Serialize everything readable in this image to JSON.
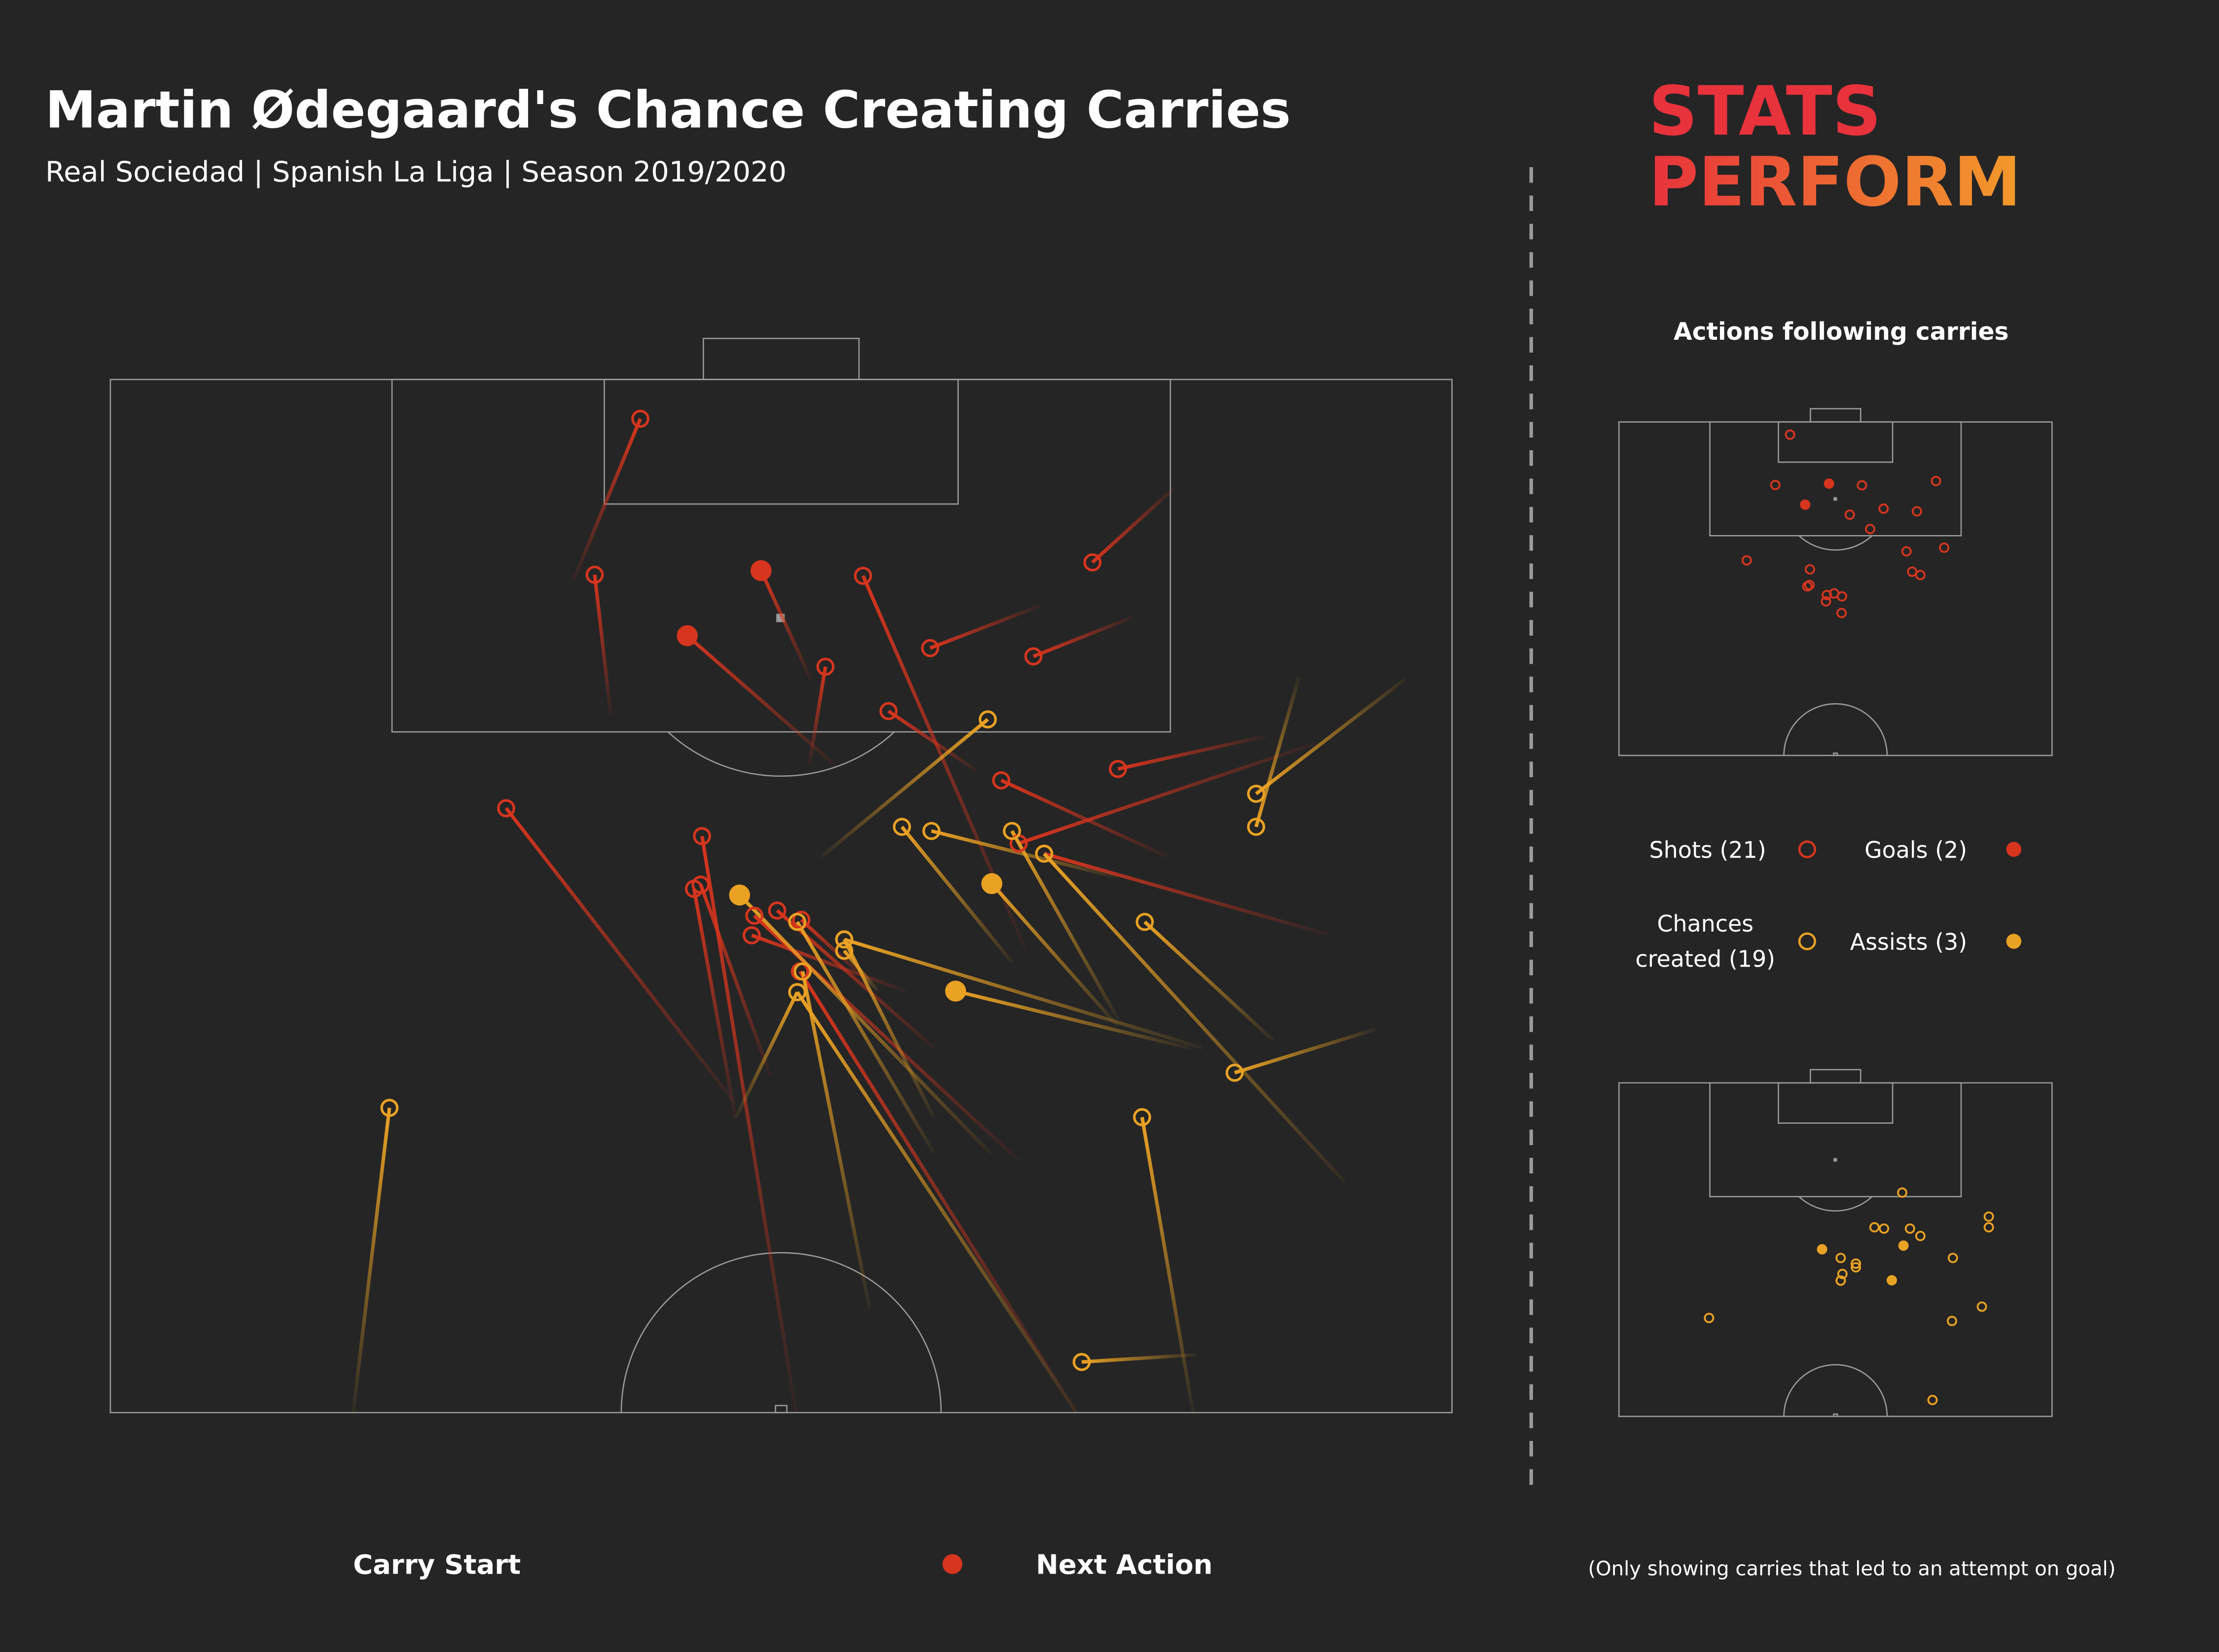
{
  "title": "Martin Ødegaard's Chance Creating Carries",
  "subtitle": "Real Sociedad | Spanish La Liga | Season 2019/2020",
  "logo": {
    "line1": "STATS",
    "line2": "PERFORM"
  },
  "chart_data": {
    "type": "carry-map",
    "xlim": [
      0,
      100
    ],
    "ylim": [
      0,
      100
    ],
    "inset_title": "Actions following carries",
    "series": [
      {
        "name": "Shots (21)",
        "color": "#d8351e",
        "filled": false,
        "panel": "top",
        "carries": [
          {
            "start": [
              34.5,
              19.5
            ],
            "end": [
              39.5,
              3.8
            ]
          },
          {
            "start": [
              37.3,
              32.5
            ],
            "end": [
              36.1,
              18.9
            ]
          },
          {
            "start": [
              68.2,
              55.1
            ],
            "end": [
              56.1,
              19.0
            ]
          },
          {
            "start": [
              52.1,
              37.3
            ],
            "end": [
              53.3,
              27.8
            ]
          },
          {
            "start": [
              69.3,
              21.9
            ],
            "end": [
              61.1,
              26.0
            ]
          },
          {
            "start": [
              76.2,
              23.0
            ],
            "end": [
              68.8,
              26.8
            ]
          },
          {
            "start": [
              79.3,
              10.5
            ],
            "end": [
              73.2,
              17.7
            ]
          },
          {
            "start": [
              64.6,
              37.9
            ],
            "end": [
              58.0,
              32.1
            ]
          },
          {
            "start": [
              86.2,
              34.5
            ],
            "end": [
              75.1,
              37.7
            ]
          },
          {
            "start": [
              78.8,
              46.2
            ],
            "end": [
              66.4,
              38.8
            ]
          },
          {
            "start": [
              89.9,
              35.2
            ],
            "end": [
              67.7,
              44.9
            ]
          },
          {
            "start": [
              90.7,
              53.7
            ],
            "end": [
              69.6,
              45.9
            ]
          },
          {
            "start": [
              46.6,
              70.1
            ],
            "end": [
              29.5,
              41.5
            ]
          },
          {
            "start": [
              51.1,
              100
            ],
            "end": [
              44.1,
              44.2
            ]
          },
          {
            "start": [
              46.6,
              71.5
            ],
            "end": [
              43.5,
              49.3
            ]
          },
          {
            "start": [
              49.2,
              67.4
            ],
            "end": [
              44.0,
              48.9
            ]
          },
          {
            "start": [
              67.7,
              75.6
            ],
            "end": [
              48.0,
              51.9
            ]
          },
          {
            "start": [
              61.4,
              64.7
            ],
            "end": [
              49.7,
              51.4
            ]
          },
          {
            "start": [
              59.3,
              59.2
            ],
            "end": [
              47.8,
              53.8
            ]
          },
          {
            "start": [
              72.0,
              100
            ],
            "end": [
              51.4,
              57.3
            ]
          },
          {
            "start": [
              56.1,
              57.8
            ],
            "end": [
              51.5,
              52.3
            ]
          }
        ]
      },
      {
        "name": "Goals (2)",
        "color": "#d8351e",
        "filled": true,
        "panel": "top",
        "carries": [
          {
            "start": [
              52.2,
              29.0
            ],
            "end": [
              48.5,
              18.5
            ]
          },
          {
            "start": [
              54.0,
              37.3
            ],
            "end": [
              43.0,
              24.8
            ]
          }
        ]
      },
      {
        "name": "Chances created (19)",
        "color": "#eaa224",
        "filled": false,
        "panel": "bottom",
        "carries": [
          {
            "start": [
              53.0,
              46.2
            ],
            "end": [
              65.4,
              32.9
            ]
          },
          {
            "start": [
              96.5,
              29.0
            ],
            "end": [
              85.4,
              40.1
            ]
          },
          {
            "start": [
              88.6,
              28.8
            ],
            "end": [
              85.4,
              43.3
            ]
          },
          {
            "start": [
              67.2,
              56.4
            ],
            "end": [
              59.0,
              43.3
            ]
          },
          {
            "start": [
              75.1,
              48.2
            ],
            "end": [
              61.2,
              43.7
            ]
          },
          {
            "start": [
              75.1,
              61.9
            ],
            "end": [
              67.2,
              43.7
            ]
          },
          {
            "start": [
              61.4,
              74.9
            ],
            "end": [
              51.2,
              52.5
            ]
          },
          {
            "start": [
              81.4,
              64.7
            ],
            "end": [
              54.7,
              54.2
            ]
          },
          {
            "start": [
              57.2,
              59.2
            ],
            "end": [
              54.7,
              55.3
            ]
          },
          {
            "start": [
              56.6,
              90.0
            ],
            "end": [
              51.6,
              57.3
            ]
          },
          {
            "start": [
              46.6,
              71.5
            ],
            "end": [
              51.2,
              59.3
            ]
          },
          {
            "start": [
              86.7,
              64.0
            ],
            "end": [
              77.1,
              52.5
            ]
          },
          {
            "start": [
              94.3,
              62.9
            ],
            "end": [
              83.8,
              67.1
            ]
          },
          {
            "start": [
              80.7,
              100
            ],
            "end": [
              76.9,
              71.4
            ]
          },
          {
            "start": [
              80.9,
              94.4
            ],
            "end": [
              72.4,
              95.1
            ]
          },
          {
            "start": [
              18.1,
              100
            ],
            "end": [
              20.8,
              70.5
            ]
          },
          {
            "start": [
              72.0,
              100
            ],
            "end": [
              51.2,
              59.3
            ]
          },
          {
            "start": [
              92.0,
              77.7
            ],
            "end": [
              69.6,
              45.9
            ]
          },
          {
            "start": [
              61.4,
              71.5
            ],
            "end": [
              54.7,
              54.2
            ]
          }
        ]
      },
      {
        "name": "Assists (3)",
        "color": "#eaa224",
        "filled": true,
        "panel": "bottom",
        "carries": [
          {
            "start": [
              65.6,
              74.9
            ],
            "end": [
              46.9,
              49.9
            ]
          },
          {
            "start": [
              75.1,
              62.6
            ],
            "end": [
              65.7,
              48.8
            ]
          },
          {
            "start": [
              80.4,
              64.7
            ],
            "end": [
              63.0,
              59.2
            ]
          }
        ]
      }
    ]
  },
  "legend": {
    "start": "Carry Start",
    "end": "Next Action"
  },
  "note": "(Only showing carries that led to an attempt on goal)"
}
